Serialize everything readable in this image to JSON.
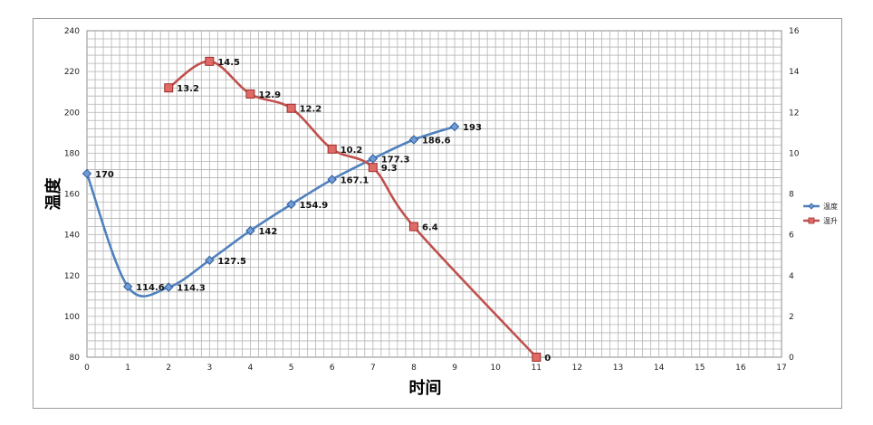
{
  "chart_data": {
    "type": "line",
    "xlabel": "时间",
    "ylabel": "温度",
    "x_ticks": [
      0,
      1,
      2,
      3,
      4,
      5,
      6,
      7,
      8,
      9,
      10,
      11,
      12,
      13,
      14,
      15,
      16,
      17
    ],
    "xlim": [
      0,
      17
    ],
    "ylim_left": [
      80,
      240
    ],
    "yticks_left": [
      80,
      100,
      120,
      140,
      160,
      180,
      200,
      220,
      240
    ],
    "ylim_right": [
      0,
      16
    ],
    "yticks_right": [
      0,
      2,
      4,
      6,
      8,
      10,
      12,
      14,
      16
    ],
    "grid": true,
    "legend_position": "right",
    "series": [
      {
        "name": "温度",
        "axis": "left",
        "color": "#4F81BD",
        "marker": "diamond",
        "x": [
          0,
          1,
          2,
          3,
          4,
          5,
          6,
          7,
          8,
          9
        ],
        "values": [
          170,
          114.6,
          114.3,
          127.5,
          142,
          154.9,
          167.1,
          177.3,
          186.6,
          193
        ],
        "labels": [
          "170",
          "114.6",
          "114.3",
          "127.5",
          "142",
          "154.9",
          "167.1",
          "177.3",
          "186.6",
          "193"
        ]
      },
      {
        "name": "温升",
        "axis": "right",
        "color": "#C0504D",
        "marker": "square",
        "x": [
          2,
          3,
          4,
          5,
          6,
          7,
          8,
          11
        ],
        "values": [
          13.2,
          14.5,
          12.9,
          12.2,
          10.2,
          9.3,
          6.4,
          0
        ],
        "labels": [
          "13.2",
          "14.5",
          "12.9",
          "12.2",
          "10.2",
          "9.3",
          "6.4",
          "0"
        ]
      }
    ]
  }
}
